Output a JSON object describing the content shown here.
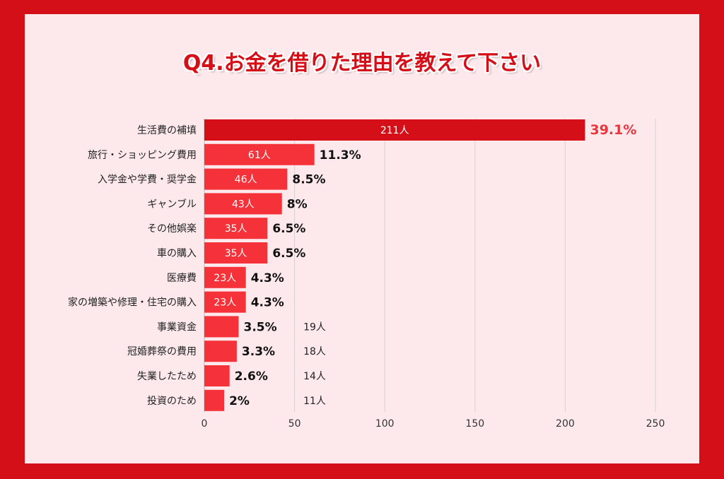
{
  "title": "Q4.お金を借りた理由を教えて下さい",
  "colors": {
    "background": "#d40f17",
    "panel": "#fde9ec",
    "bar": "#f5323a",
    "bar_top": "#d40f17",
    "highlight_text": "#e8363f"
  },
  "chart_data": {
    "type": "bar",
    "orientation": "horizontal",
    "categories": [
      "生活費の補填",
      "旅行・ショッピング費用",
      "入学金や学費・奨学金",
      "ギャンブル",
      "その他娯楽",
      "車の購入",
      "医療費",
      "家の増築や修理・住宅の購入",
      "事業資金",
      "冠婚葬祭の費用",
      "失業したため",
      "投資のため"
    ],
    "values": [
      211,
      61,
      46,
      43,
      35,
      35,
      23,
      23,
      19,
      18,
      14,
      11
    ],
    "value_labels": [
      "211人",
      "61人",
      "46人",
      "43人",
      "35人",
      "35人",
      "23人",
      "23人",
      "19人",
      "18人",
      "14人",
      "11人"
    ],
    "percent_labels": [
      "39.1%",
      "11.3%",
      "8.5%",
      "8%",
      "6.5%",
      "6.5%",
      "4.3%",
      "4.3%",
      "3.5%",
      "3.3%",
      "2.6%",
      "2%"
    ],
    "xlim": [
      0,
      250
    ],
    "xticks": [
      "0",
      "50",
      "100",
      "150",
      "200",
      "250"
    ],
    "grid": true
  }
}
